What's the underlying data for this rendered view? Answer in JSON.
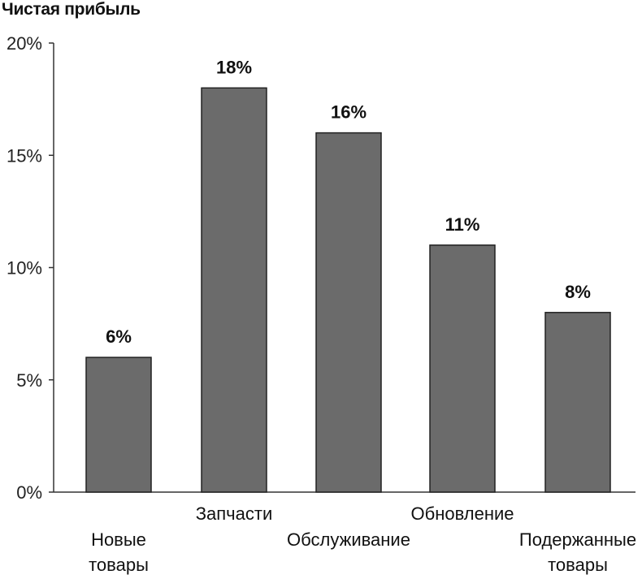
{
  "chart_data": {
    "type": "bar",
    "title": "Чистая прибыль",
    "xlabel": "",
    "ylabel": "",
    "categories": [
      [
        "Новые",
        "товары"
      ],
      [
        "Запчасти"
      ],
      [
        "Обслуживание"
      ],
      [
        "Обновление"
      ],
      [
        "Подержанные",
        "товары"
      ]
    ],
    "values": [
      6,
      18,
      16,
      11,
      8
    ],
    "data_labels": [
      "6%",
      "18%",
      "16%",
      "11%",
      "8%"
    ],
    "ylim": [
      0,
      20
    ],
    "y_ticks": [
      {
        "value": 0,
        "label": "0%"
      },
      {
        "value": 5,
        "label": "5%"
      },
      {
        "value": 10,
        "label": "10%"
      },
      {
        "value": 15,
        "label": "15%"
      },
      {
        "value": 20,
        "label": "20%"
      }
    ],
    "grid": false,
    "colors": {
      "bar": "#6b6b6b",
      "bar_stroke": "#222222",
      "axis": "#333333"
    }
  }
}
